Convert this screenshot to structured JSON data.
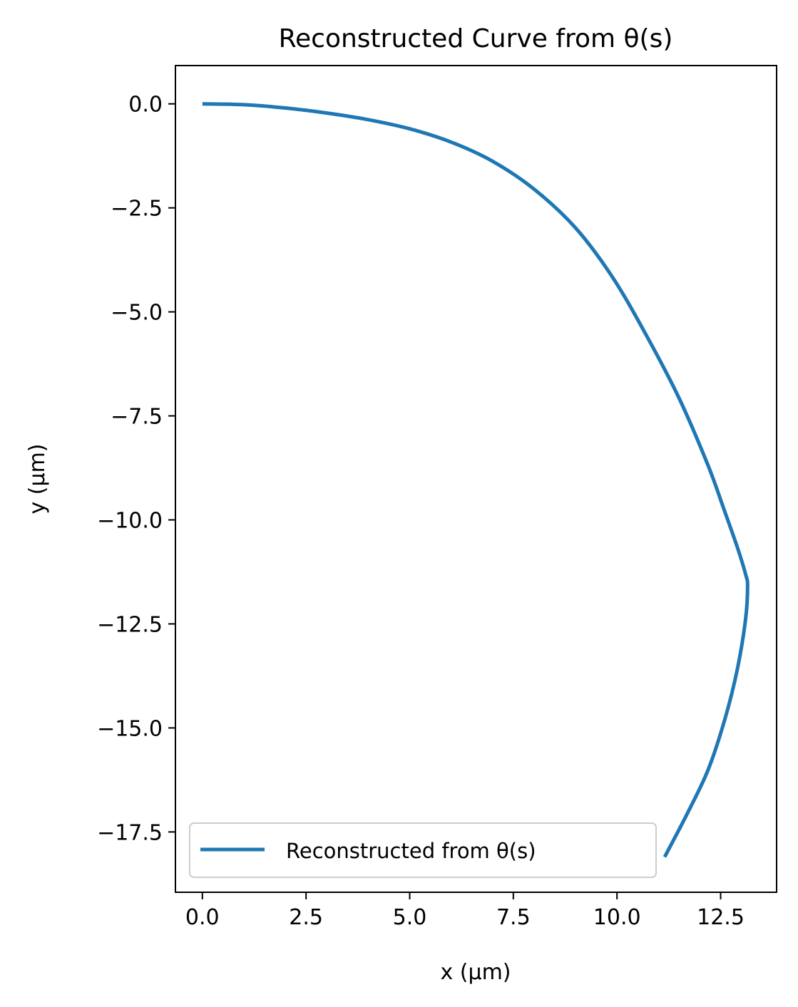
{
  "chart_data": {
    "type": "line",
    "title": "Reconstructed Curve from θ(s)",
    "xlabel": "x (µm)",
    "ylabel": "y (µm)",
    "xlim": [
      -0.65,
      13.85
    ],
    "ylim": [
      -18.95,
      0.92
    ],
    "xticks": [
      0.0,
      2.5,
      5.0,
      7.5,
      10.0,
      12.5
    ],
    "xtick_labels": [
      "0.0",
      "2.5",
      "5.0",
      "7.5",
      "10.0",
      "12.5"
    ],
    "yticks": [
      0.0,
      -2.5,
      -5.0,
      -7.5,
      -10.0,
      -12.5,
      -15.0,
      -17.5
    ],
    "ytick_labels": [
      "0.0",
      "−2.5",
      "−5.0",
      "−7.5",
      "−10.0",
      "−12.5",
      "−15.0",
      "−17.5"
    ],
    "grid": false,
    "legend_position": "lower-left",
    "series": [
      {
        "name": "Reconstructed from θ(s)",
        "color": "#1f77b4",
        "x": [
          0.0,
          1.0,
          2.0,
          3.0,
          4.0,
          5.0,
          6.0,
          7.0,
          8.0,
          9.0,
          9.9,
          10.7,
          11.5,
          12.2,
          12.6,
          12.9,
          13.1,
          13.15,
          13.1,
          12.9,
          12.6,
          12.2,
          11.7,
          11.15
        ],
        "y": [
          0.0,
          -0.02,
          -0.1,
          -0.22,
          -0.38,
          -0.6,
          -0.92,
          -1.38,
          -2.05,
          -2.98,
          -4.18,
          -5.55,
          -7.08,
          -8.7,
          -9.8,
          -10.65,
          -11.3,
          -11.6,
          -12.4,
          -13.6,
          -14.8,
          -16.0,
          -17.05,
          -18.1
        ]
      }
    ]
  }
}
